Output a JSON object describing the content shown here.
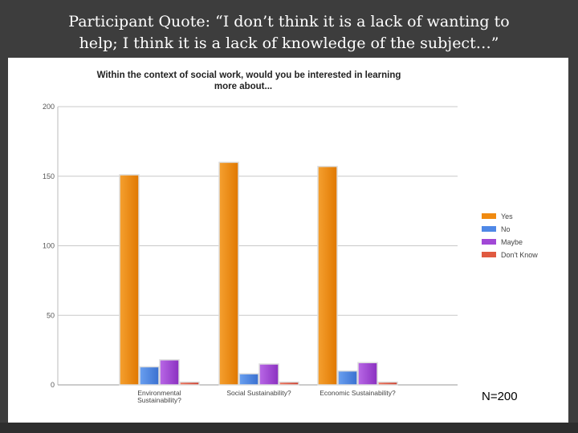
{
  "slide": {
    "title_line1": "Participant Quote: “I don’t think it is a lack of wanting to",
    "title_line2": "help; I think it is a lack of knowledge of the subject…”",
    "n_label": "N=200"
  },
  "chart_data": {
    "type": "bar",
    "title": "Within the context of social work, would you be interested in learning more about...",
    "title_line1": "Within the context of social work, would you be interested in learning",
    "title_line2": "more about...",
    "categories": [
      "Environmental Sustainability?",
      "Social Sustainability?",
      "Economic Sustainability?"
    ],
    "category_lines": [
      [
        "Environmental",
        "Sustainability?"
      ],
      [
        "Social Sustainability?"
      ],
      [
        "Economic Sustainability?"
      ]
    ],
    "series": [
      {
        "name": "Yes",
        "values": [
          151,
          160,
          157
        ],
        "color": "#f08a10"
      },
      {
        "name": "No",
        "values": [
          13,
          8,
          10
        ],
        "color": "#4f88e6"
      },
      {
        "name": "Maybe",
        "values": [
          18,
          15,
          16
        ],
        "color": "#a148d6"
      },
      {
        "name": "Don't Know",
        "values": [
          2,
          2,
          2
        ],
        "color": "#e05a40"
      }
    ],
    "ylim": [
      0,
      200
    ],
    "yticks": [
      0,
      50,
      100,
      150,
      200
    ],
    "ytick_labels": [
      "0",
      "50",
      "100",
      "150",
      "200"
    ],
    "grid": true,
    "legend": "right"
  }
}
